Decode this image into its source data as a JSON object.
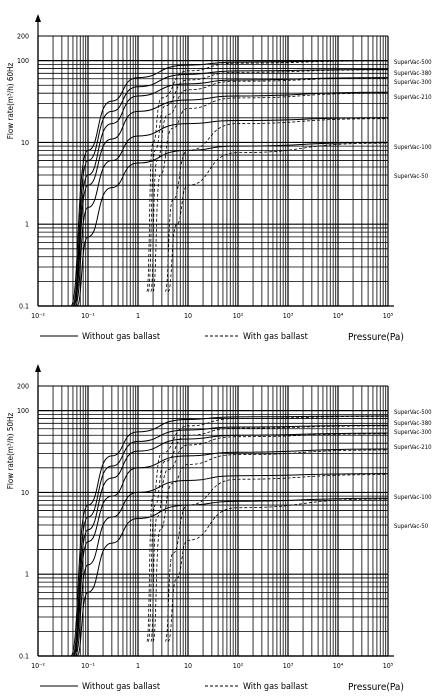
{
  "chart_data": [
    {
      "type": "line",
      "scale": "log-log",
      "xlabel": "Pressure(Pa)",
      "ylabel": "Flow rate(m³/h) 60Hz",
      "xlim": [
        0.01,
        100000
      ],
      "ylim": [
        0.1,
        200
      ],
      "x_ticks": [
        "10⁻²",
        "10⁻¹",
        "1",
        "10",
        "10²",
        "10³",
        "10⁴",
        "10⁵"
      ],
      "y_ticks": [
        "200",
        "100",
        "10",
        "1",
        "0.1"
      ],
      "legend": [
        {
          "label": "Without gas ballast",
          "style": "solid"
        },
        {
          "label": "With gas ballast",
          "style": "dashed"
        }
      ],
      "series": [
        {
          "name": "SuperVac-500",
          "style": "solid",
          "values": [
            [
              0.045,
              0.1
            ],
            [
              0.1,
              8
            ],
            [
              0.3,
              32
            ],
            [
              1,
              62
            ],
            [
              10,
              88
            ],
            [
              100,
              96
            ],
            [
              100000,
              100
            ]
          ]
        },
        {
          "name": "SuperVac-380",
          "style": "solid",
          "values": [
            [
              0.048,
              0.1
            ],
            [
              0.1,
              6
            ],
            [
              0.3,
              24
            ],
            [
              1,
              48
            ],
            [
              10,
              68
            ],
            [
              100,
              75
            ],
            [
              100000,
              78
            ]
          ]
        },
        {
          "name": "SuperVac-300",
          "style": "solid",
          "values": [
            [
              0.05,
              0.1
            ],
            [
              0.1,
              4
            ],
            [
              0.3,
              17
            ],
            [
              1,
              37
            ],
            [
              10,
              52
            ],
            [
              100,
              58
            ],
            [
              100000,
              62
            ]
          ]
        },
        {
          "name": "SuperVac-210",
          "style": "solid",
          "values": [
            [
              0.052,
              0.1
            ],
            [
              0.1,
              3
            ],
            [
              0.3,
              11
            ],
            [
              1,
              24
            ],
            [
              10,
              33
            ],
            [
              100,
              37
            ],
            [
              100000,
              41
            ]
          ]
        },
        {
          "name": "SuperVac-100",
          "style": "solid",
          "values": [
            [
              0.055,
              0.1
            ],
            [
              0.1,
              1.6
            ],
            [
              0.3,
              6
            ],
            [
              1,
              12
            ],
            [
              10,
              17
            ],
            [
              100,
              18.5
            ],
            [
              100000,
              20
            ]
          ]
        },
        {
          "name": "SuperVac-50",
          "style": "solid",
          "values": [
            [
              0.06,
              0.1
            ],
            [
              0.1,
              0.7
            ],
            [
              0.3,
              2.8
            ],
            [
              1,
              5.6
            ],
            [
              10,
              8
            ],
            [
              100,
              9
            ],
            [
              100000,
              10
            ]
          ]
        },
        {
          "name": "SuperVac-500 (gas ballast)",
          "style": "dashed",
          "values": [
            [
              1.5,
              0.15
            ],
            [
              2,
              10
            ],
            [
              3,
              35
            ],
            [
              10,
              75
            ],
            [
              100,
              93
            ],
            [
              100000,
              99
            ]
          ]
        },
        {
          "name": "SuperVac-380 (gas ballast)",
          "style": "dashed",
          "values": [
            [
              1.6,
              0.15
            ],
            [
              2.2,
              8
            ],
            [
              3.5,
              28
            ],
            [
              10,
              58
            ],
            [
              100,
              72
            ],
            [
              100000,
              77
            ]
          ]
        },
        {
          "name": "SuperVac-300 (gas ballast)",
          "style": "dashed",
          "values": [
            [
              1.8,
              0.15
            ],
            [
              2.4,
              6
            ],
            [
              4,
              22
            ],
            [
              10,
              44
            ],
            [
              100,
              56
            ],
            [
              100000,
              61
            ]
          ]
        },
        {
          "name": "SuperVac-210 (gas ballast)",
          "style": "dashed",
          "values": [
            [
              2,
              0.15
            ],
            [
              2.8,
              4
            ],
            [
              5,
              15
            ],
            [
              10,
              26
            ],
            [
              100,
              35
            ],
            [
              100000,
              40
            ]
          ]
        },
        {
          "name": "SuperVac-100 (gas ballast)",
          "style": "dashed",
          "values": [
            [
              3.5,
              0.15
            ],
            [
              5,
              2
            ],
            [
              10,
              8
            ],
            [
              100,
              17
            ],
            [
              100000,
              19.5
            ]
          ]
        },
        {
          "name": "SuperVac-50 (gas ballast)",
          "style": "dashed",
          "values": [
            [
              4,
              0.15
            ],
            [
              6,
              1
            ],
            [
              10,
              3
            ],
            [
              100,
              7.5
            ],
            [
              100000,
              9.8
            ]
          ]
        }
      ],
      "series_labels": [
        "SuperVac-500",
        "SuperVac-380",
        "SuperVac-300",
        "SuperVac-210",
        "SuperVac-100",
        "SuperVac-50"
      ]
    },
    {
      "type": "line",
      "scale": "log-log",
      "xlabel": "Pressure(Pa)",
      "ylabel": "Flow rate(m³/h) 50Hz",
      "xlim": [
        0.01,
        100000
      ],
      "ylim": [
        0.1,
        200
      ],
      "x_ticks": [
        "10⁻²",
        "10⁻¹",
        "1",
        "10",
        "10²",
        "10³",
        "10⁴",
        "10⁵"
      ],
      "y_ticks": [
        "200",
        "100",
        "10",
        "1",
        "0.1"
      ],
      "legend": [
        {
          "label": "Without gas ballast",
          "style": "solid"
        },
        {
          "label": "With gas ballast",
          "style": "dashed"
        }
      ],
      "series": [
        {
          "name": "SuperVac-500",
          "style": "solid",
          "values": [
            [
              0.045,
              0.1
            ],
            [
              0.1,
              7
            ],
            [
              0.3,
              28
            ],
            [
              1,
              55
            ],
            [
              10,
              78
            ],
            [
              100,
              84
            ],
            [
              100000,
              86
            ]
          ]
        },
        {
          "name": "SuperVac-380",
          "style": "solid",
          "values": [
            [
              0.048,
              0.1
            ],
            [
              0.1,
              5
            ],
            [
              0.3,
              21
            ],
            [
              1,
              42
            ],
            [
              10,
              58
            ],
            [
              100,
              63
            ],
            [
              100000,
              66
            ]
          ]
        },
        {
          "name": "SuperVac-300",
          "style": "solid",
          "values": [
            [
              0.05,
              0.1
            ],
            [
              0.1,
              3.5
            ],
            [
              0.3,
              15
            ],
            [
              1,
              32
            ],
            [
              10,
              45
            ],
            [
              100,
              50
            ],
            [
              100000,
              53
            ]
          ]
        },
        {
          "name": "SuperVac-210",
          "style": "solid",
          "values": [
            [
              0.052,
              0.1
            ],
            [
              0.1,
              2.5
            ],
            [
              0.3,
              9
            ],
            [
              1,
              20
            ],
            [
              10,
              28
            ],
            [
              100,
              31
            ],
            [
              100000,
              34
            ]
          ]
        },
        {
          "name": "SuperVac-100",
          "style": "solid",
          "values": [
            [
              0.055,
              0.1
            ],
            [
              0.1,
              1.3
            ],
            [
              0.3,
              5
            ],
            [
              1,
              10
            ],
            [
              10,
              14
            ],
            [
              100,
              16
            ],
            [
              100000,
              17
            ]
          ]
        },
        {
          "name": "SuperVac-50",
          "style": "solid",
          "values": [
            [
              0.06,
              0.1
            ],
            [
              0.1,
              0.6
            ],
            [
              0.3,
              2.4
            ],
            [
              1,
              4.8
            ],
            [
              10,
              7
            ],
            [
              100,
              7.8
            ],
            [
              100000,
              8.5
            ]
          ]
        },
        {
          "name": "SuperVac-500 (gas ballast)",
          "style": "dashed",
          "values": [
            [
              1.5,
              0.15
            ],
            [
              2,
              9
            ],
            [
              3,
              30
            ],
            [
              10,
              65
            ],
            [
              100,
              80
            ],
            [
              100000,
              85
            ]
          ]
        },
        {
          "name": "SuperVac-380 (gas ballast)",
          "style": "dashed",
          "values": [
            [
              1.6,
              0.15
            ],
            [
              2.2,
              7
            ],
            [
              3.5,
              24
            ],
            [
              10,
              50
            ],
            [
              100,
              61
            ],
            [
              100000,
              65
            ]
          ]
        },
        {
          "name": "SuperVac-300 (gas ballast)",
          "style": "dashed",
          "values": [
            [
              1.8,
              0.15
            ],
            [
              2.4,
              5
            ],
            [
              4,
              19
            ],
            [
              10,
              38
            ],
            [
              100,
              48
            ],
            [
              100000,
              52
            ]
          ]
        },
        {
          "name": "SuperVac-210 (gas ballast)",
          "style": "dashed",
          "values": [
            [
              2,
              0.15
            ],
            [
              2.8,
              3.5
            ],
            [
              5,
              13
            ],
            [
              10,
              22
            ],
            [
              100,
              29
            ],
            [
              100000,
              33
            ]
          ]
        },
        {
          "name": "SuperVac-100 (gas ballast)",
          "style": "dashed",
          "values": [
            [
              3.5,
              0.15
            ],
            [
              5,
              1.8
            ],
            [
              10,
              7
            ],
            [
              100,
              14.5
            ],
            [
              100000,
              16.5
            ]
          ]
        },
        {
          "name": "SuperVac-50 (gas ballast)",
          "style": "dashed",
          "values": [
            [
              4,
              0.15
            ],
            [
              6,
              0.9
            ],
            [
              10,
              2.6
            ],
            [
              100,
              6.5
            ],
            [
              100000,
              8.3
            ]
          ]
        }
      ],
      "series_labels": [
        "SuperVac-500",
        "SuperVac-380",
        "SuperVac-300",
        "SuperVac-210",
        "SuperVac-100",
        "SuperVac-50"
      ]
    }
  ]
}
